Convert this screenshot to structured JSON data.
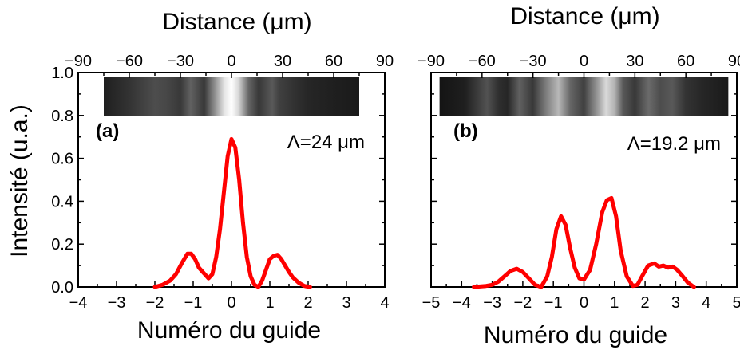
{
  "figure": {
    "shared_ylabel": "Intensité (u.a.)"
  },
  "chart_data": [
    {
      "type": "line",
      "panel_label": "(a)",
      "annotation": "Λ=24 μm",
      "xlabel": "Numéro du guide",
      "top_xlabel": "Distance (μm)",
      "ylabel": "Intensité (u.a.)",
      "xlim": [
        -4,
        4
      ],
      "ylim": [
        0,
        1.0
      ],
      "x_ticks": [
        "−4",
        "−3",
        "−2",
        "−1",
        "0",
        "1",
        "2",
        "3",
        "4"
      ],
      "x_tick_values": [
        -4,
        -3,
        -2,
        -1,
        0,
        1,
        2,
        3,
        4
      ],
      "top_ticks": [
        "−90",
        "−60",
        "−30",
        "0",
        "30",
        "60",
        "90"
      ],
      "top_tick_values": [
        -90,
        -60,
        -30,
        0,
        30,
        60,
        90
      ],
      "top_range": [
        -90,
        90
      ],
      "y_ticks": [
        "0.0",
        "0.2",
        "0.4",
        "0.6",
        "0.8",
        "1.0"
      ],
      "y_tick_values": [
        0,
        0.2,
        0.4,
        0.6,
        0.8,
        1.0
      ],
      "line_color": "#ff0000",
      "series": [
        {
          "x": [
            -2.0,
            -1.8,
            -1.6,
            -1.45,
            -1.3,
            -1.15,
            -1.05,
            -0.95,
            -0.85,
            -0.75,
            -0.6,
            -0.5,
            -0.4,
            -0.3,
            -0.2,
            -0.1,
            0.0,
            0.1,
            0.2,
            0.3,
            0.4,
            0.5,
            0.6,
            0.7,
            0.8,
            0.9,
            1.0,
            1.1,
            1.2,
            1.3,
            1.4,
            1.5,
            1.6,
            1.75,
            1.9,
            2.05
          ],
          "y": [
            0.0,
            0.01,
            0.03,
            0.06,
            0.11,
            0.155,
            0.155,
            0.13,
            0.09,
            0.07,
            0.04,
            0.06,
            0.14,
            0.27,
            0.44,
            0.61,
            0.69,
            0.65,
            0.5,
            0.3,
            0.14,
            0.05,
            0.01,
            0.0,
            0.03,
            0.08,
            0.13,
            0.145,
            0.15,
            0.13,
            0.1,
            0.07,
            0.045,
            0.02,
            0.005,
            0.0
          ]
        }
      ],
      "image_strip": {
        "range": [
          -75,
          75
        ],
        "intensity_profile": {
          "x": [
            -75,
            -60,
            -45,
            -38,
            -30,
            -24,
            -16,
            -10,
            -4,
            0,
            4,
            10,
            16,
            24,
            28,
            36,
            45,
            60,
            75
          ],
          "v": [
            0.12,
            0.2,
            0.3,
            0.28,
            0.22,
            0.38,
            0.22,
            0.55,
            0.9,
            1.0,
            0.85,
            0.4,
            0.22,
            0.35,
            0.25,
            0.2,
            0.15,
            0.12,
            0.1
          ]
        }
      }
    },
    {
      "type": "line",
      "panel_label": "(b)",
      "annotation": "Λ=19.2 μm",
      "xlabel": "Numéro du guide",
      "top_xlabel": "Distance (μm)",
      "xlim": [
        -5,
        5
      ],
      "ylim": [
        0,
        1.0
      ],
      "x_ticks": [
        "−5",
        "−4",
        "−3",
        "−2",
        "−1",
        "0",
        "1",
        "2",
        "3",
        "4",
        "5"
      ],
      "x_tick_values": [
        -5,
        -4,
        -3,
        -2,
        -1,
        0,
        1,
        2,
        3,
        4,
        5
      ],
      "top_ticks": [
        "−90",
        "−60",
        "−30",
        "0",
        "30",
        "60",
        "90"
      ],
      "top_tick_values": [
        -90,
        -60,
        -30,
        0,
        30,
        60,
        90
      ],
      "top_range": [
        -90,
        90
      ],
      "line_color": "#ff0000",
      "series": [
        {
          "x": [
            -3.6,
            -3.2,
            -3.0,
            -2.8,
            -2.6,
            -2.4,
            -2.2,
            -2.0,
            -1.8,
            -1.6,
            -1.4,
            -1.2,
            -1.05,
            -0.9,
            -0.75,
            -0.6,
            -0.45,
            -0.3,
            -0.15,
            0.0,
            0.2,
            0.4,
            0.6,
            0.75,
            0.9,
            1.05,
            1.2,
            1.4,
            1.6,
            1.75,
            1.9,
            2.1,
            2.3,
            2.45,
            2.6,
            2.75,
            2.9,
            3.05,
            3.2,
            3.4,
            3.6
          ],
          "y": [
            0.0,
            0.005,
            0.01,
            0.025,
            0.05,
            0.075,
            0.085,
            0.07,
            0.04,
            0.01,
            0.0,
            0.05,
            0.14,
            0.27,
            0.33,
            0.29,
            0.18,
            0.09,
            0.04,
            0.035,
            0.08,
            0.2,
            0.35,
            0.405,
            0.415,
            0.33,
            0.17,
            0.05,
            0.005,
            0.01,
            0.05,
            0.1,
            0.11,
            0.095,
            0.1,
            0.09,
            0.095,
            0.08,
            0.055,
            0.02,
            0.0
          ]
        }
      ],
      "image_strip": {
        "range": [
          -85,
          85
        ],
        "intensity_profile": {
          "x": [
            -85,
            -70,
            -57,
            -50,
            -45,
            -38,
            -30,
            -22,
            -15,
            -8,
            0,
            8,
            13,
            18,
            23,
            30,
            38,
            45,
            52,
            60,
            70,
            85
          ],
          "v": [
            0.08,
            0.12,
            0.32,
            0.18,
            0.15,
            0.38,
            0.22,
            0.5,
            0.72,
            0.4,
            0.25,
            0.6,
            0.85,
            0.7,
            0.35,
            0.22,
            0.42,
            0.3,
            0.35,
            0.2,
            0.15,
            0.1
          ]
        }
      }
    }
  ]
}
